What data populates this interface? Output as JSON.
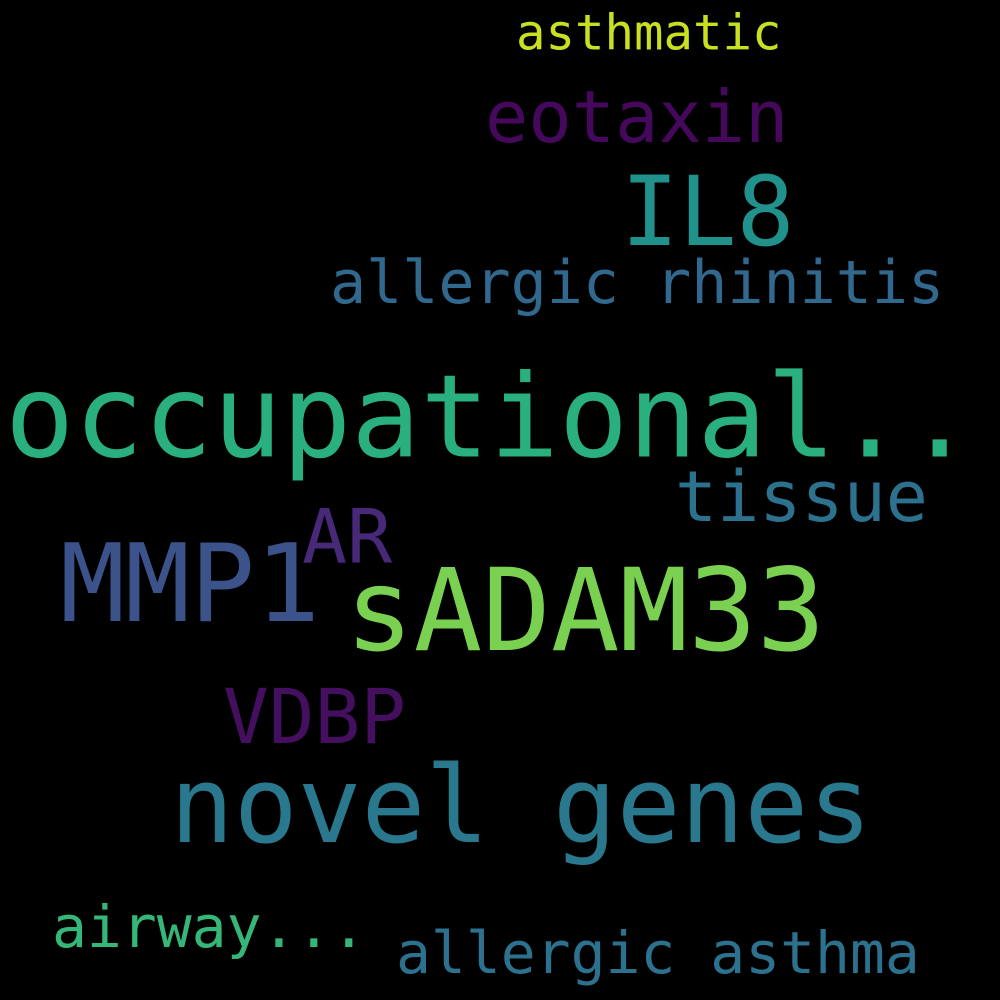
{
  "background_color": "#000000",
  "words": [
    {
      "text": "asthmatic",
      "color": "#c8e020"
    },
    {
      "text": "eotaxin",
      "color": "#46085c"
    },
    {
      "text": "IL8",
      "color": "#21918c"
    },
    {
      "text": "allergic rhinitis",
      "color": "#31688e"
    },
    {
      "text": "occupational...",
      "color": "#2ab07f"
    },
    {
      "text": "tissue",
      "color": "#2c728e"
    },
    {
      "text": "AR",
      "color": "#482878"
    },
    {
      "text": "MMP1",
      "color": "#3b528b"
    },
    {
      "text": "sADAM33",
      "color": "#7ad151"
    },
    {
      "text": "VDBP",
      "color": "#440f5f"
    },
    {
      "text": "novel genes",
      "color": "#2a788e"
    },
    {
      "text": "airway...",
      "color": "#35b779"
    },
    {
      "text": "allergic asthma",
      "color": "#2c728e"
    }
  ]
}
